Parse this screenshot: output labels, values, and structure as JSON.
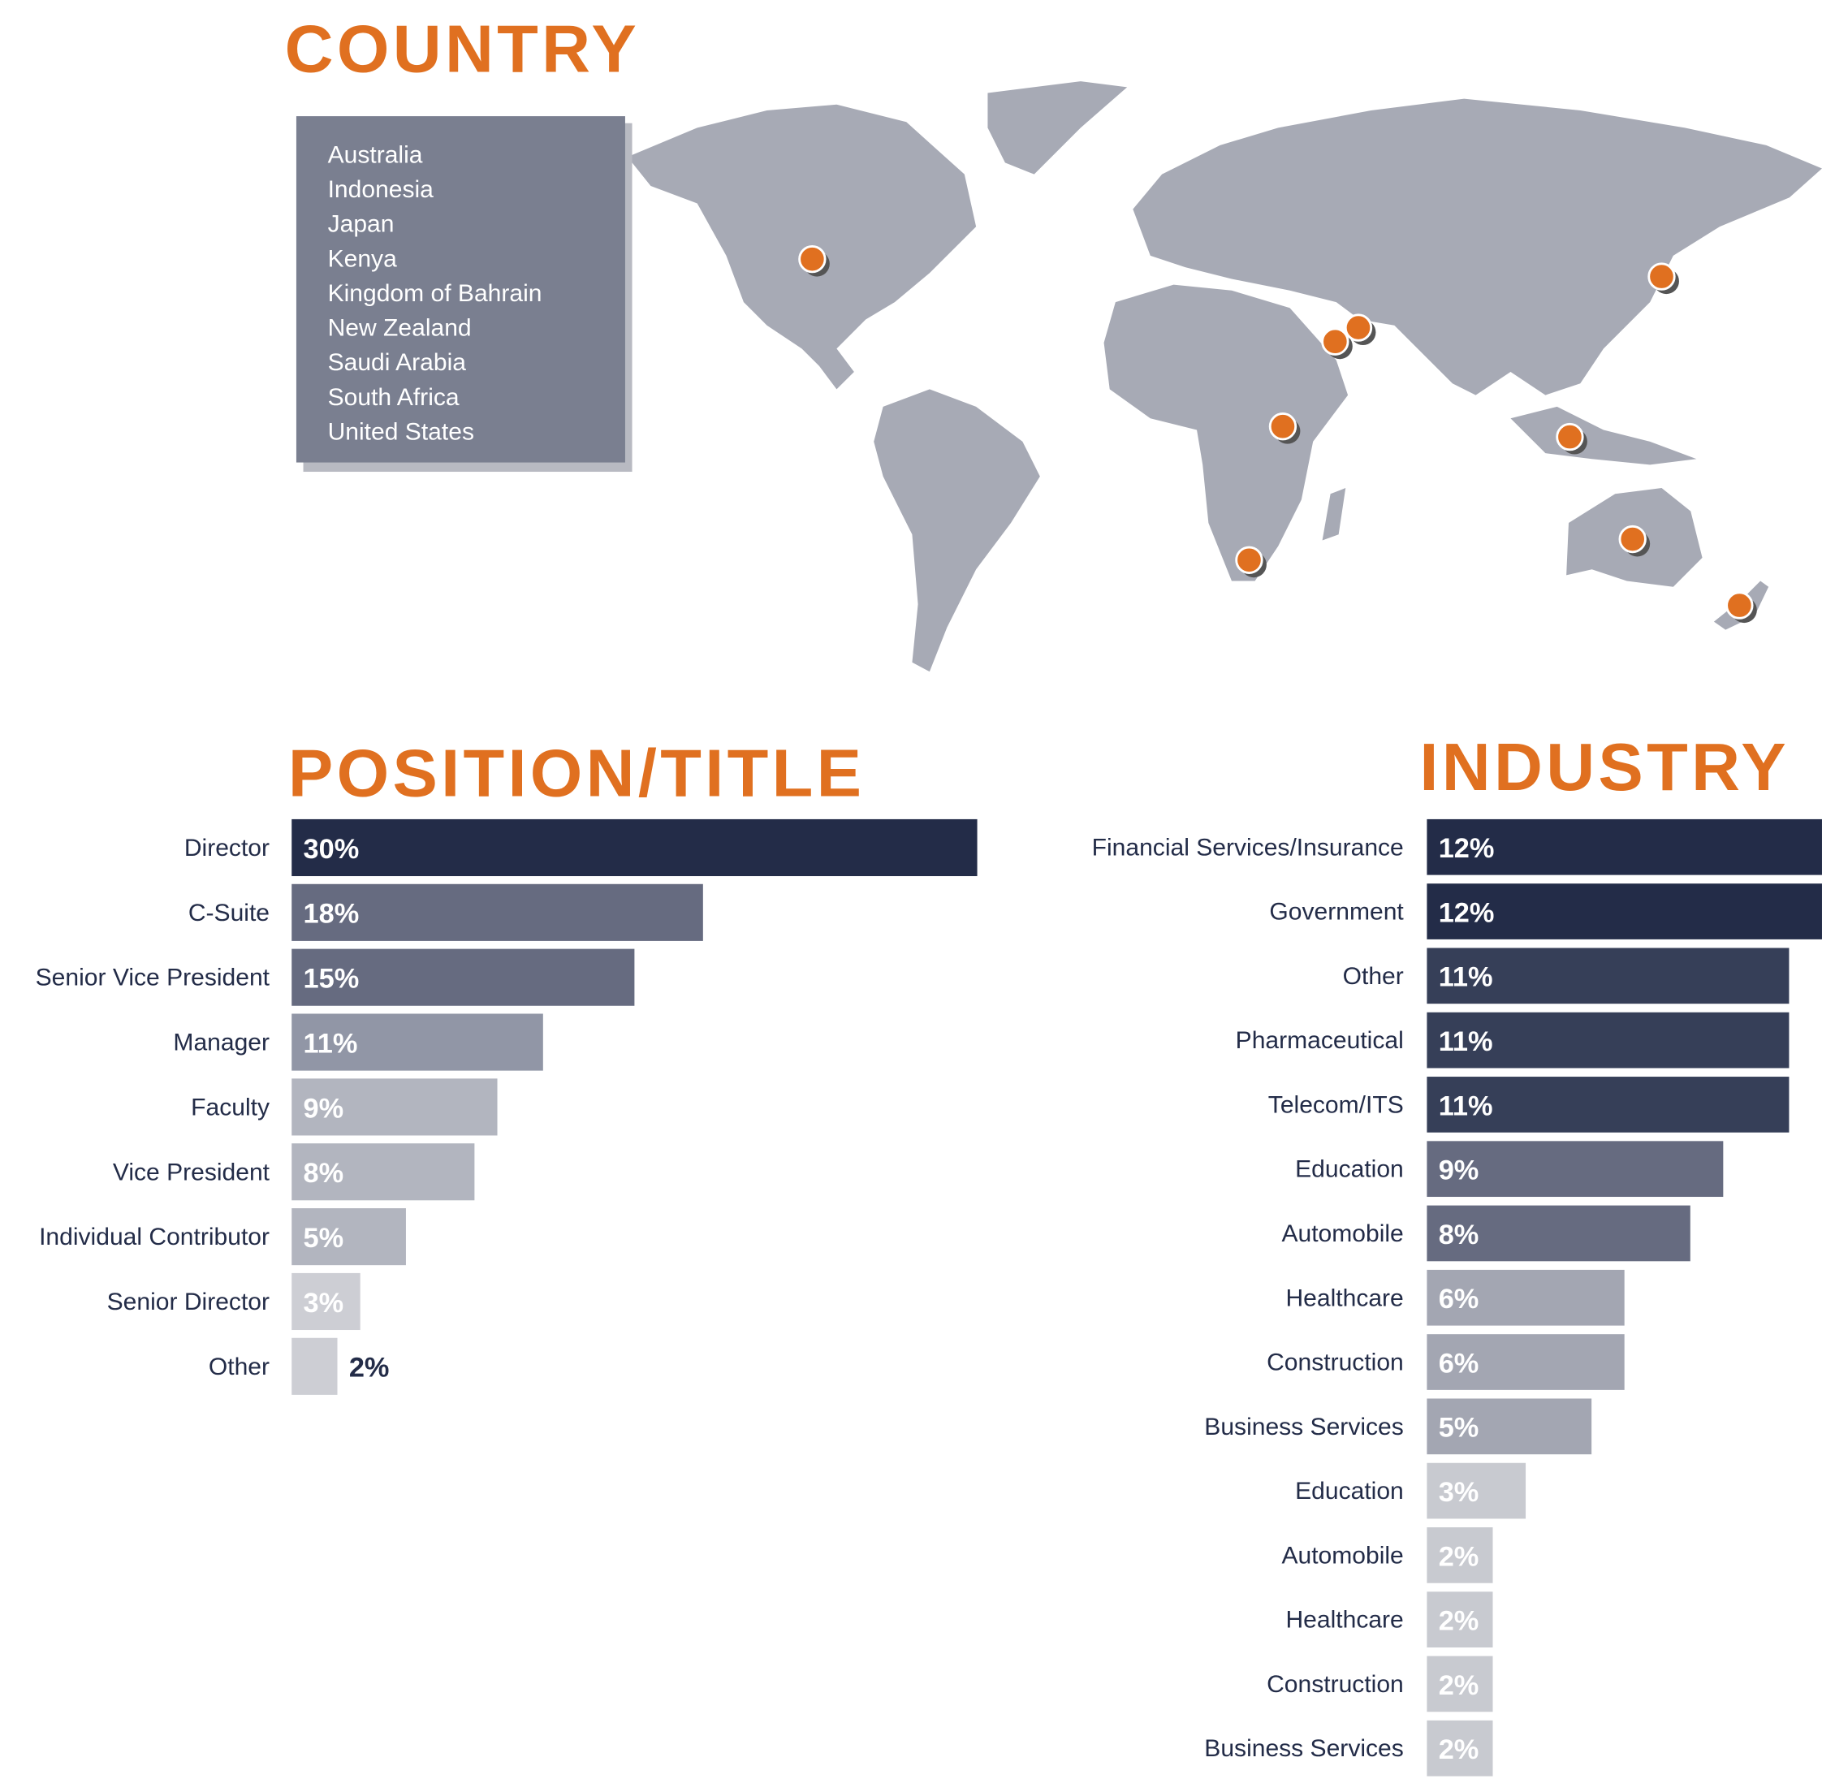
{
  "country": {
    "title": "COUNTRY",
    "countries": [
      "Australia",
      "Indonesia",
      "Japan",
      "Kenya",
      "Kingdom of Bahrain",
      "New Zealand",
      "Saudi Arabia",
      "South Africa",
      "United States"
    ]
  },
  "chart_data": [
    {
      "type": "bar",
      "orientation": "horizontal",
      "title": "POSITION/TITLE",
      "categories": [
        "Director",
        "C-Suite",
        "Senior Vice President",
        "Manager",
        "Faculty",
        "Vice President",
        "Individual Contributor",
        "Senior Director",
        "Other"
      ],
      "values": [
        30,
        18,
        15,
        11,
        9,
        8,
        5,
        3,
        2
      ],
      "value_labels": [
        "30%",
        "18%",
        "15%",
        "11%",
        "9%",
        "8%",
        "5%",
        "3%",
        "2%"
      ],
      "colors": [
        "#232c48",
        "#666b80",
        "#666b80",
        "#9196a6",
        "#b2b5bf",
        "#b2b5bf",
        "#b2b5bf",
        "#cdced4",
        "#cdced4"
      ]
    },
    {
      "type": "bar",
      "orientation": "horizontal",
      "title": "INDUSTRY",
      "categories": [
        "Financial Services/Insurance",
        "Government",
        "Other",
        "Pharmaceutical",
        "Telecom/ITS",
        "Education",
        "Automobile",
        "Healthcare",
        "Construction",
        "Business Services",
        "Education",
        "Automobile",
        "Healthcare",
        "Construction",
        "Business Services"
      ],
      "values": [
        12,
        12,
        11,
        11,
        11,
        9,
        8,
        6,
        6,
        5,
        3,
        2,
        2,
        2,
        2
      ],
      "value_labels": [
        "12%",
        "12%",
        "11%",
        "11%",
        "11%",
        "9%",
        "8%",
        "6%",
        "6%",
        "5%",
        "3%",
        "2%",
        "2%",
        "2%",
        "2%"
      ],
      "colors": [
        "#232c48",
        "#232c48",
        "#363f58",
        "#363f58",
        "#363f58",
        "#666b80",
        "#666b80",
        "#a3a6b2",
        "#a3a6b2",
        "#a3a6b2",
        "#c8cad0",
        "#c8cad0",
        "#c8cad0",
        "#c8cad0",
        "#c8cad0"
      ]
    }
  ]
}
